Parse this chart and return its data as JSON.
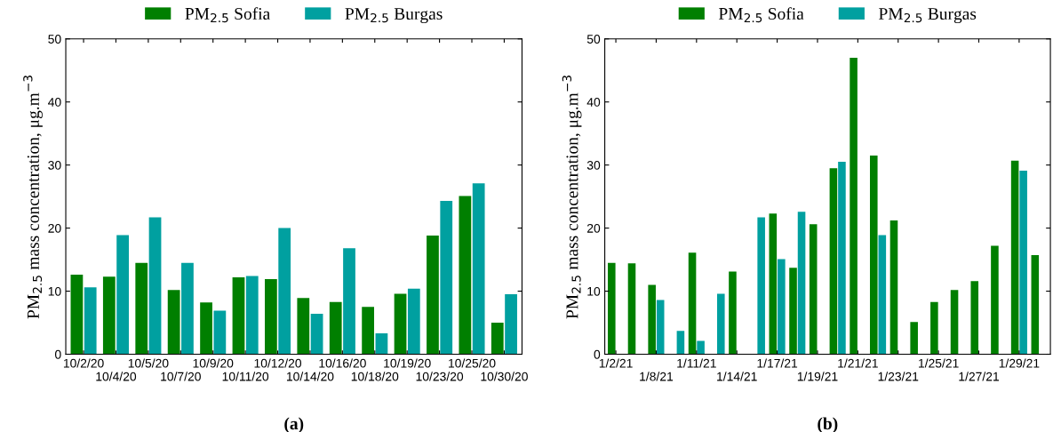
{
  "chart_data": [
    {
      "type": "bar",
      "categories": [
        "10/2/20",
        "10/4/20",
        "10/5/20",
        "10/7/20",
        "10/9/20",
        "10/11/20",
        "10/12/20",
        "10/14/20",
        "10/16/20",
        "10/18/20",
        "10/19/20",
        "10/23/20",
        "10/25/20",
        "10/30/20"
      ],
      "series": [
        {
          "name": "PM$_{2.5}$ Sofia",
          "color": "#007f00",
          "values": [
            12.6,
            12.3,
            14.5,
            10.2,
            8.2,
            12.2,
            11.9,
            8.9,
            8.3,
            7.5,
            9.6,
            18.8,
            25.1,
            5.0
          ]
        },
        {
          "name": "PM$_{2.5}$ Burgas",
          "color": "#00a0a0",
          "values": [
            10.6,
            18.9,
            21.7,
            14.5,
            6.9,
            12.4,
            20.0,
            6.4,
            16.8,
            3.3,
            10.4,
            24.3,
            27.1,
            9.5
          ]
        }
      ],
      "ylabel": "PM$_{2.5}$ mass concentration, μg.m$^{−3}$",
      "ylim": [
        0,
        50
      ],
      "yticks": [
        0,
        10,
        20,
        30,
        40,
        50
      ],
      "grid": false,
      "legend": "top",
      "annotations": [
        "(a)"
      ]
    },
    {
      "type": "bar",
      "categories": [
        "1/2/21",
        null,
        "1/8/21",
        null,
        "1/11/21",
        null,
        "1/14/21",
        null,
        "1/17/21",
        null,
        "1/19/21",
        null,
        "1/21/21",
        null,
        "1/23/21",
        null,
        "1/25/21",
        null,
        "1/27/21",
        null,
        "1/29/21",
        null
      ],
      "series": [
        {
          "name": "PM$_{2.5}$ Sofia",
          "color": "#007f00",
          "values": [
            14.5,
            14.4,
            11.0,
            null,
            16.1,
            null,
            13.1,
            null,
            22.3,
            13.7,
            20.6,
            29.5,
            47.0,
            31.5,
            21.2,
            5.1,
            8.3,
            10.2,
            11.6,
            17.2,
            30.7,
            15.7
          ]
        },
        {
          "name": "PM$_{2.5}$ Burgas",
          "color": "#00a0a0",
          "values": [
            null,
            null,
            8.6,
            3.7,
            2.1,
            9.6,
            null,
            21.7,
            15.1,
            22.6,
            null,
            30.5,
            null,
            18.9,
            null,
            null,
            null,
            null,
            null,
            null,
            29.1,
            null
          ]
        }
      ],
      "ylabel": "PM$_{2.5}$ mass concentration, μg.m$^{−3}$",
      "ylim": [
        0,
        50
      ],
      "yticks": [
        0,
        10,
        20,
        30,
        40,
        50
      ],
      "grid": false,
      "legend": "top",
      "annotations": [
        "(b)"
      ]
    }
  ]
}
